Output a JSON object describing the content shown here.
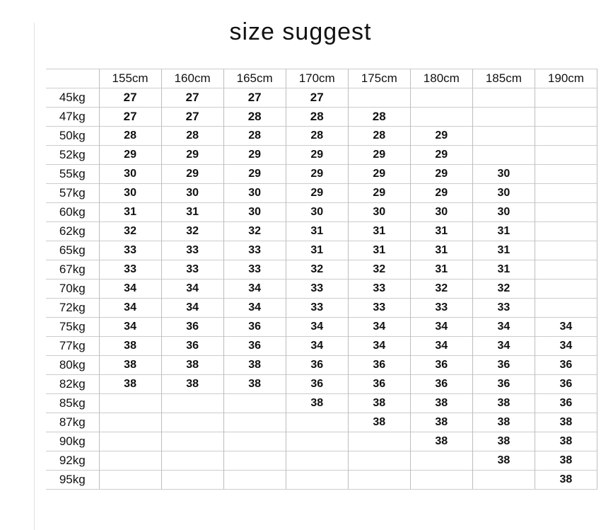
{
  "title": "size suggest",
  "colors": {
    "background": "#ffffff",
    "text": "#111111",
    "grid_horizontal": "#cccccc",
    "grid_vertical": "#bdbdbd"
  },
  "chart_data": {
    "type": "table",
    "title": "size suggest",
    "corner_label": "",
    "column_headers": [
      "155cm",
      "160cm",
      "165cm",
      "170cm",
      "175cm",
      "180cm",
      "185cm",
      "190cm"
    ],
    "rows": [
      {
        "label": "45kg",
        "cells": [
          "27",
          "27",
          "27",
          "27",
          "",
          "",
          "",
          ""
        ]
      },
      {
        "label": "47kg",
        "cells": [
          "27",
          "27",
          "28",
          "28",
          "28",
          "",
          "",
          ""
        ]
      },
      {
        "label": "50kg",
        "cells": [
          "28",
          "28",
          "28",
          "28",
          "28",
          "29",
          "",
          ""
        ]
      },
      {
        "label": "52kg",
        "cells": [
          "29",
          "29",
          "29",
          "29",
          "29",
          "29",
          "",
          ""
        ]
      },
      {
        "label": "55kg",
        "cells": [
          "30",
          "29",
          "29",
          "29",
          "29",
          "29",
          "30",
          ""
        ]
      },
      {
        "label": "57kg",
        "cells": [
          "30",
          "30",
          "30",
          "29",
          "29",
          "29",
          "30",
          ""
        ]
      },
      {
        "label": "60kg",
        "cells": [
          "31",
          "31",
          "30",
          "30",
          "30",
          "30",
          "30",
          ""
        ]
      },
      {
        "label": "62kg",
        "cells": [
          "32",
          "32",
          "32",
          "31",
          "31",
          "31",
          "31",
          ""
        ]
      },
      {
        "label": "65kg",
        "cells": [
          "33",
          "33",
          "33",
          "31",
          "31",
          "31",
          "31",
          ""
        ]
      },
      {
        "label": "67kg",
        "cells": [
          "33",
          "33",
          "33",
          "32",
          "32",
          "31",
          "31",
          ""
        ]
      },
      {
        "label": "70kg",
        "cells": [
          "34",
          "34",
          "34",
          "33",
          "33",
          "32",
          "32",
          ""
        ]
      },
      {
        "label": "72kg",
        "cells": [
          "34",
          "34",
          "34",
          "33",
          "33",
          "33",
          "33",
          ""
        ]
      },
      {
        "label": "75kg",
        "cells": [
          "34",
          "36",
          "36",
          "34",
          "34",
          "34",
          "34",
          "34"
        ]
      },
      {
        "label": "77kg",
        "cells": [
          "38",
          "36",
          "36",
          "34",
          "34",
          "34",
          "34",
          "34"
        ]
      },
      {
        "label": "80kg",
        "cells": [
          "38",
          "38",
          "38",
          "36",
          "36",
          "36",
          "36",
          "36"
        ]
      },
      {
        "label": "82kg",
        "cells": [
          "38",
          "38",
          "38",
          "36",
          "36",
          "36",
          "36",
          "36"
        ]
      },
      {
        "label": "85kg",
        "cells": [
          "",
          "",
          "",
          "38",
          "38",
          "38",
          "38",
          "36"
        ]
      },
      {
        "label": "87kg",
        "cells": [
          "",
          "",
          "",
          "",
          "38",
          "38",
          "38",
          "38"
        ]
      },
      {
        "label": "90kg",
        "cells": [
          "",
          "",
          "",
          "",
          "",
          "38",
          "38",
          "38"
        ]
      },
      {
        "label": "92kg",
        "cells": [
          "",
          "",
          "",
          "",
          "",
          "",
          "38",
          "38"
        ]
      },
      {
        "label": "95kg",
        "cells": [
          "",
          "",
          "",
          "",
          "",
          "",
          "",
          "38"
        ]
      }
    ]
  }
}
